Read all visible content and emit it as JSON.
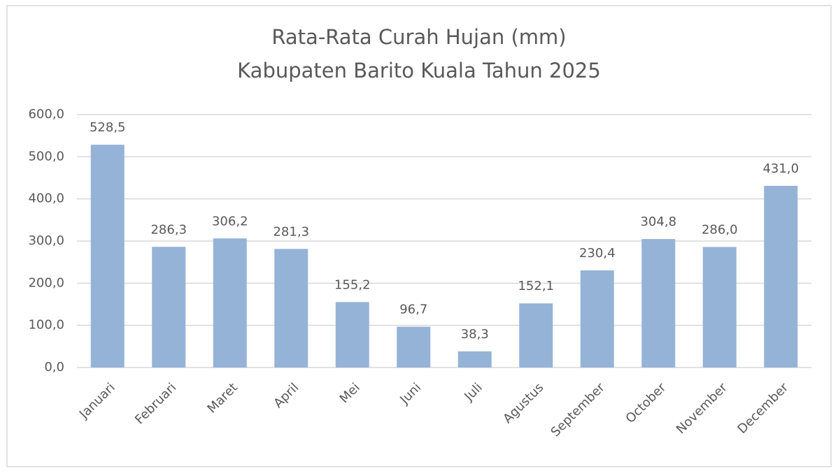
{
  "chart_data": {
    "type": "bar",
    "title": [
      "Rata-Rata Curah Hujan (mm)",
      "Kabupaten Barito Kuala Tahun 2025"
    ],
    "categories": [
      "Januari",
      "Februari",
      "Maret",
      "April",
      "Mei",
      "Juni",
      "Juli",
      "Agustus",
      "September",
      "October",
      "November",
      "December"
    ],
    "values": [
      528.5,
      286.3,
      306.2,
      281.3,
      155.2,
      96.7,
      38.3,
      152.1,
      230.4,
      304.8,
      286.0,
      431.0
    ],
    "value_labels": [
      "528,5",
      "286,3",
      "306,2",
      "281,3",
      "155,2",
      "96,7",
      "38,3",
      "152,1",
      "230,4",
      "304,8",
      "286,0",
      "431,0"
    ],
    "color": "#95b3d7",
    "ylim": [
      0,
      600
    ],
    "yticks": [
      {
        "value": 0,
        "label": "0,0"
      },
      {
        "value": 100,
        "label": "100,0"
      },
      {
        "value": 200,
        "label": "200,0"
      },
      {
        "value": 300,
        "label": "300,0"
      },
      {
        "value": 400,
        "label": "400,0"
      },
      {
        "value": 500,
        "label": "500,0"
      },
      {
        "value": 600,
        "label": "600,0"
      }
    ],
    "grid": true
  }
}
